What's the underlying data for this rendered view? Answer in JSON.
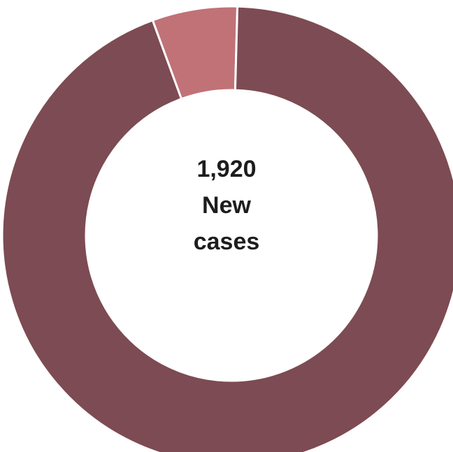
{
  "chart_data": {
    "type": "pie",
    "style": "donut",
    "categories": [
      "",
      ""
    ],
    "values": [
      94,
      6
    ],
    "colors": [
      "#7d4b53",
      "#c07277"
    ],
    "separator_color": "#ffffff",
    "center_text": {
      "value": "1,920",
      "line1": "New",
      "line2": "cases"
    },
    "legend": "none",
    "title": ""
  }
}
